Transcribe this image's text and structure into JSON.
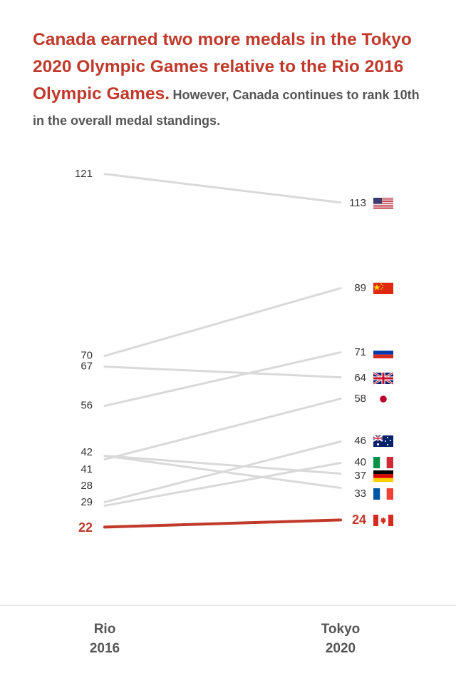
{
  "title": {
    "highlight": "Canada earned two more medals in the Tokyo 2020 Olympic Games relative to the Rio 2016 Olympic Games.",
    "rest": "However, Canada continues to rank 10th in the overall medal standings."
  },
  "colors": {
    "highlight": "#c0392b",
    "line": "#d9d9d9",
    "text": "#333333",
    "muted": "#555555",
    "baseline": "#d0d0d0"
  },
  "chart_data": {
    "type": "line",
    "x": [
      "Rio 2016",
      "Tokyo 2020"
    ],
    "x_labels": [
      [
        "Rio",
        "2016"
      ],
      [
        "Tokyo",
        "2020"
      ]
    ],
    "series": [
      {
        "values": [
          121,
          113
        ],
        "flag": "usa-flag-icon",
        "highlight": false
      },
      {
        "values": [
          70,
          89
        ],
        "flag": "china-flag-icon",
        "highlight": false
      },
      {
        "values": [
          56,
          71
        ],
        "flag": "russia-flag-icon",
        "highlight": false
      },
      {
        "values": [
          67,
          64
        ],
        "flag": "uk-flag-icon",
        "highlight": false
      },
      {
        "values": [
          41,
          58
        ],
        "flag": "japan-flag-icon",
        "highlight": false
      },
      {
        "values": [
          29,
          46
        ],
        "flag": "australia-flag-icon",
        "highlight": false
      },
      {
        "values": [
          28,
          40
        ],
        "flag": "italy-flag-icon",
        "highlight": false
      },
      {
        "values": [
          42,
          37
        ],
        "flag": "germany-flag-icon",
        "highlight": false
      },
      {
        "values": [
          42,
          33
        ],
        "flag": "france-flag-icon",
        "highlight": false
      },
      {
        "values": [
          22,
          24
        ],
        "flag": "canada-flag-icon",
        "highlight": true
      }
    ],
    "left_labels": [
      "121",
      "70",
      "67",
      "56",
      "42",
      "41",
      "28",
      "29",
      "22"
    ],
    "right_labels": [
      "113",
      "89",
      "71",
      "64",
      "58",
      "46",
      "40",
      "37",
      "33",
      "24"
    ]
  }
}
